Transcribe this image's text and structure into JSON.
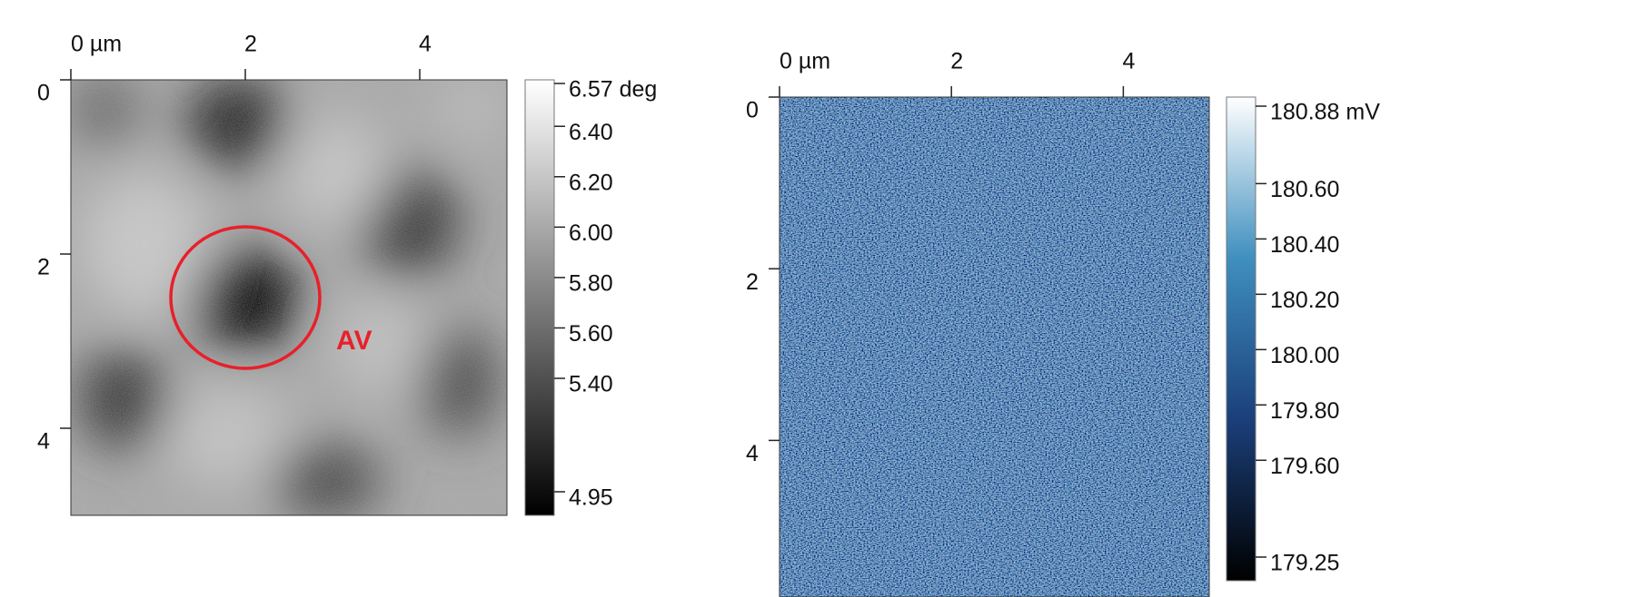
{
  "chart_data": [
    {
      "type": "image",
      "xlim": [
        0,
        5
      ],
      "ylim": [
        0,
        5
      ],
      "xticks": [
        {
          "value": 0,
          "label": "0 µm"
        },
        2,
        4
      ],
      "yticks": [
        0,
        2,
        4
      ],
      "colorbar": {
        "lim": [
          4.95,
          6.57
        ],
        "colors": [
          "#000000",
          "#ffffff"
        ],
        "ticks": [
          {
            "value": 6.57,
            "label": "6.57 deg"
          },
          {
            "value": 6.4,
            "label": "6.40"
          },
          {
            "value": 6.2,
            "label": "6.20"
          },
          {
            "value": 6.0,
            "label": "6.00"
          },
          {
            "value": 5.8,
            "label": "5.80"
          },
          {
            "value": 5.6,
            "label": "5.60"
          },
          {
            "value": 5.4,
            "label": "5.40"
          },
          {
            "value": 4.95,
            "label": "4.95"
          }
        ]
      },
      "annotation": "AV"
    },
    {
      "type": "image",
      "xlim": [
        0,
        5
      ],
      "ylim": [
        0,
        5
      ],
      "xticks": [
        {
          "value": 0,
          "label": "0 µm"
        },
        2,
        4
      ],
      "yticks": [
        0,
        2,
        4
      ],
      "colorbar": {
        "lim": [
          179.25,
          180.88
        ],
        "colors": [
          "#000000",
          "#1b3f7a",
          "#3f8fbf",
          "#ffffff"
        ],
        "ticks": [
          {
            "value": 180.88,
            "label": "180.88 mV"
          },
          {
            "value": 180.6,
            "label": "180.60"
          },
          {
            "value": 180.4,
            "label": "180.40"
          },
          {
            "value": 180.2,
            "label": "180.20"
          },
          {
            "value": 180.0,
            "label": "180.00"
          },
          {
            "value": 179.8,
            "label": "179.80"
          },
          {
            "value": 179.6,
            "label": "179.60"
          },
          {
            "value": 179.25,
            "label": "179.25"
          }
        ]
      }
    }
  ]
}
